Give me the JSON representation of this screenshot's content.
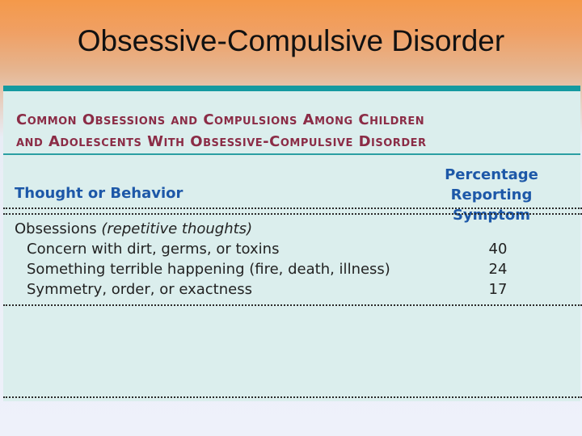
{
  "slide_title": "Obsessive-Compulsive Disorder",
  "table": {
    "title_line1": "Common Obsessions and Compulsions Among Children",
    "title_line2": "and Adolescents With Obsessive-Compulsive Disorder",
    "col1_header": "Thought or Behavior",
    "col2_header_line1": "Percentage Reporting",
    "col2_header_line2": "Symptom",
    "section_label": "Obsessions",
    "section_note": "(repetitive thoughts)",
    "rows": [
      {
        "label": "Concern with dirt, germs, or toxins",
        "value": "40"
      },
      {
        "label": "Something terrible happening (fire, death, illness)",
        "value": "24"
      },
      {
        "label": "Symmetry, order, or exactness",
        "value": "17"
      }
    ]
  },
  "colors": {
    "title_text": "#8b2c46",
    "header_text": "#1d58a8",
    "accent_rule": "#149aa0",
    "panel_bg": "#dbeeed"
  }
}
